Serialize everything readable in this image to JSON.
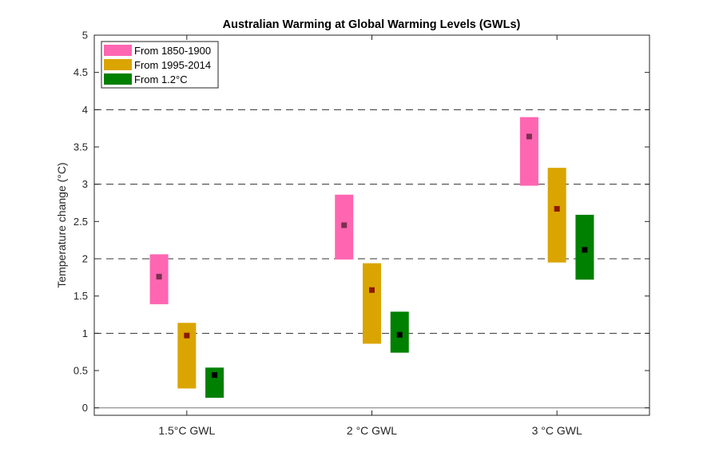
{
  "chart_data": {
    "type": "bar",
    "title": "Australian Warming at Global Warming Levels (GWLs)",
    "xlabel": "",
    "ylabel": "Temperature change (°C)",
    "categories": [
      "1.5°C GWL",
      "2 °C GWL",
      "3 °C GWL"
    ],
    "ylim": [
      -0.1,
      5
    ],
    "yticks": [
      "0",
      "0.5",
      "1",
      "1.5",
      "2",
      "2.5",
      "3",
      "3.5",
      "4",
      "4.5",
      "5"
    ],
    "dashed_gridlines": [
      1,
      2,
      3,
      4
    ],
    "legend_position": "top-left",
    "series": [
      {
        "name": "From 1850-1900",
        "color": "#ff66b2",
        "marker_color": "#7a3050",
        "low": [
          1.39,
          1.99,
          2.98
        ],
        "high": [
          2.06,
          2.86,
          3.9
        ],
        "median": [
          1.76,
          2.45,
          3.64
        ]
      },
      {
        "name": "From 1995-2014",
        "color": "#daa500",
        "marker_color": "#8b1a00",
        "low": [
          0.26,
          0.86,
          1.95
        ],
        "high": [
          1.14,
          1.94,
          3.22
        ],
        "median": [
          0.97,
          1.58,
          2.67
        ]
      },
      {
        "name": "From 1.2°C",
        "color": "#008000",
        "marker_color": "#000000",
        "low": [
          0.135,
          0.74,
          1.72
        ],
        "high": [
          0.54,
          1.29,
          2.59
        ],
        "median": [
          0.44,
          0.98,
          2.12
        ]
      }
    ]
  }
}
